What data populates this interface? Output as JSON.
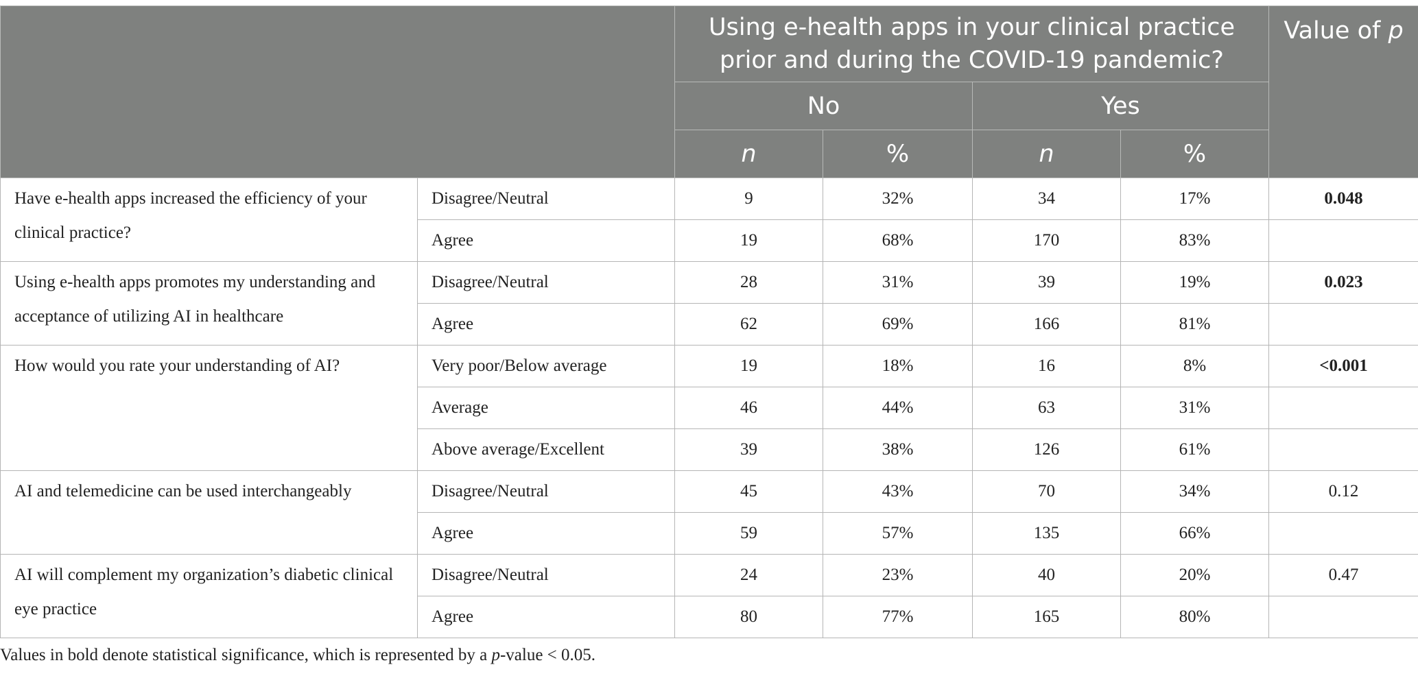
{
  "table": {
    "header": {
      "group_label": "Using e-health apps in your clinical practice prior and during the COVID-19 pandemic?",
      "no": "No",
      "yes": "Yes",
      "n_label": "n",
      "pct_label": "%",
      "p_label": "Value of",
      "p_symbol": "p"
    },
    "groups": [
      {
        "question": "Have e-health apps increased the efficiency of your clinical practice?",
        "p_value": "0.048",
        "bold": true,
        "rows": [
          {
            "response": "Disagree/Neutral",
            "n_no": "9",
            "pct_no": "32%",
            "n_yes": "34",
            "pct_yes": "17%"
          },
          {
            "response": "Agree",
            "n_no": "19",
            "pct_no": "68%",
            "n_yes": "170",
            "pct_yes": "83%"
          }
        ]
      },
      {
        "question": "Using e-health apps promotes my understanding and acceptance of utilizing AI in healthcare",
        "p_value": "0.023",
        "bold": true,
        "rows": [
          {
            "response": "Disagree/Neutral",
            "n_no": "28",
            "pct_no": "31%",
            "n_yes": "39",
            "pct_yes": "19%"
          },
          {
            "response": "Agree",
            "n_no": "62",
            "pct_no": "69%",
            "n_yes": "166",
            "pct_yes": "81%"
          }
        ]
      },
      {
        "question": "How would you rate your understanding of AI?",
        "p_value": "<0.001",
        "bold": true,
        "rows": [
          {
            "response": "Very poor/Below average",
            "n_no": "19",
            "pct_no": "18%",
            "n_yes": "16",
            "pct_yes": "8%"
          },
          {
            "response": "Average",
            "n_no": "46",
            "pct_no": "44%",
            "n_yes": "63",
            "pct_yes": "31%"
          },
          {
            "response": "Above average/Excellent",
            "n_no": "39",
            "pct_no": "38%",
            "n_yes": "126",
            "pct_yes": "61%"
          }
        ]
      },
      {
        "question": "AI and telemedicine can be used interchangeably",
        "p_value": "0.12",
        "bold": false,
        "rows": [
          {
            "response": "Disagree/Neutral",
            "n_no": "45",
            "pct_no": "43%",
            "n_yes": "70",
            "pct_yes": "34%"
          },
          {
            "response": "Agree",
            "n_no": "59",
            "pct_no": "57%",
            "n_yes": "135",
            "pct_yes": "66%"
          }
        ]
      },
      {
        "question": "AI will complement my organization’s diabetic clinical eye practice",
        "p_value": "0.47",
        "bold": false,
        "rows": [
          {
            "response": "Disagree/Neutral",
            "n_no": "24",
            "pct_no": "23%",
            "n_yes": "40",
            "pct_yes": "20%"
          },
          {
            "response": "Agree",
            "n_no": "80",
            "pct_no": "77%",
            "n_yes": "165",
            "pct_yes": "80%"
          }
        ]
      }
    ],
    "footnote": {
      "before": "Values in bold denote statistical significance, which is represented by a ",
      "symbol": "p",
      "after": "-value < 0.05."
    }
  }
}
